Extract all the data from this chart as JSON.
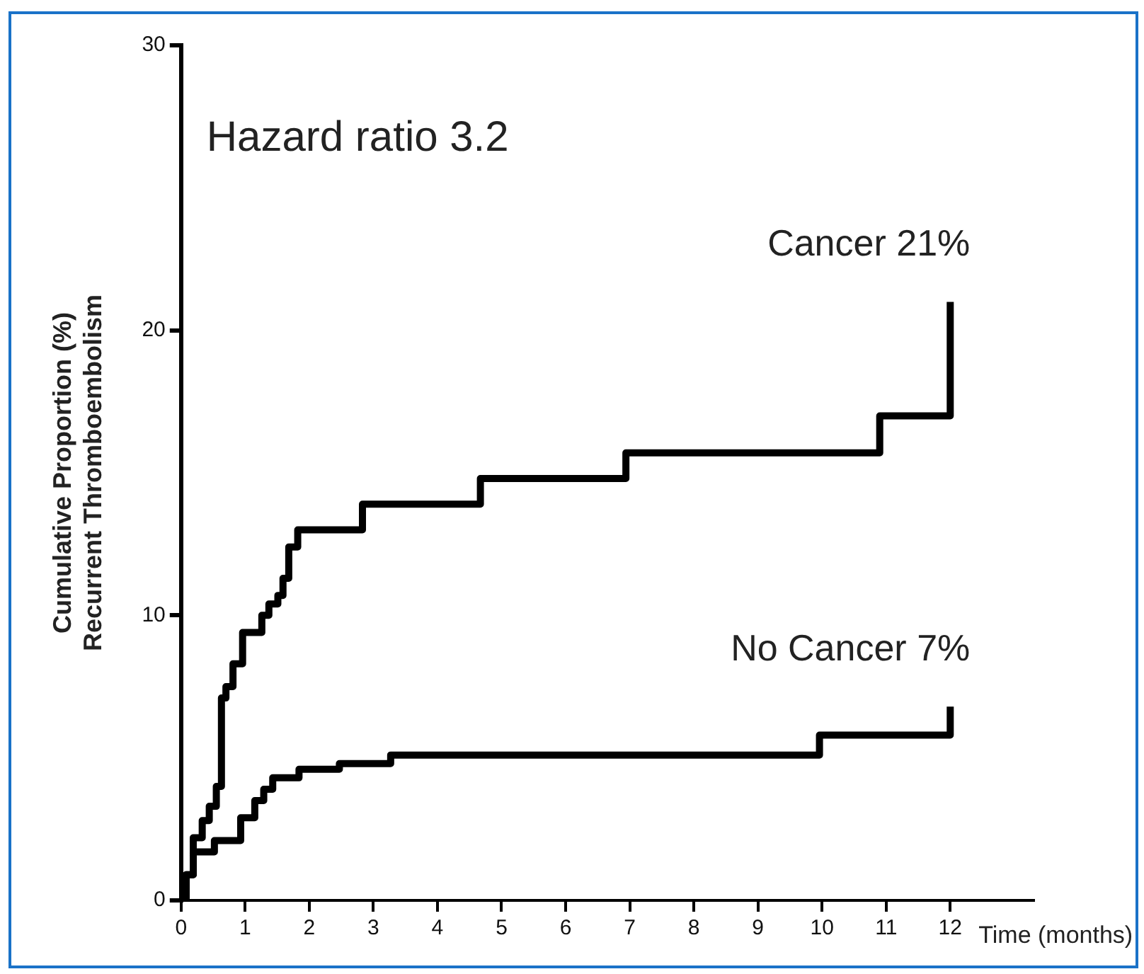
{
  "chart_data": {
    "type": "step",
    "ylabel": "Cumulative Proportion (%)\nRecurrent Thromboembolism",
    "xlabel": "Time (months)",
    "annotations": [
      "Hazard ratio 3.2"
    ],
    "series": [
      {
        "name": "Cancer 21%",
        "color": "#000000",
        "x": [
          0,
          0.08,
          0.19,
          0.33,
          0.44,
          0.55,
          0.63,
          0.7,
          0.81,
          0.96,
          1.26,
          1.37,
          1.51,
          1.59,
          1.68,
          1.82,
          2.83,
          4.67,
          6.94,
          10.9,
          12.0
        ],
        "values": [
          0,
          0.9,
          2.2,
          2.8,
          3.3,
          4.0,
          7.1,
          7.5,
          8.3,
          9.4,
          10.0,
          10.4,
          10.7,
          11.3,
          12.4,
          13.0,
          13.9,
          14.8,
          15.7,
          17.0,
          21.0
        ]
      },
      {
        "name": "No Cancer 7%",
        "color": "#000000",
        "x": [
          0,
          0.08,
          0.19,
          0.26,
          0.52,
          0.93,
          1.15,
          1.29,
          1.43,
          1.84,
          2.47,
          3.27,
          9.96,
          12.0
        ],
        "values": [
          0,
          0.9,
          1.7,
          1.7,
          2.1,
          2.9,
          3.5,
          3.9,
          4.3,
          4.6,
          4.8,
          5.1,
          5.8,
          6.8
        ]
      }
    ],
    "xlim": [
      0,
      13.3
    ],
    "xticks": [
      0,
      1,
      2,
      3,
      4,
      5,
      6,
      7,
      8,
      9,
      10,
      11,
      12
    ],
    "ylim": [
      0,
      30
    ],
    "yticks": [
      0,
      10,
      20,
      30
    ],
    "grid": false,
    "legend": false,
    "marker": "none",
    "line_style": "solid"
  }
}
